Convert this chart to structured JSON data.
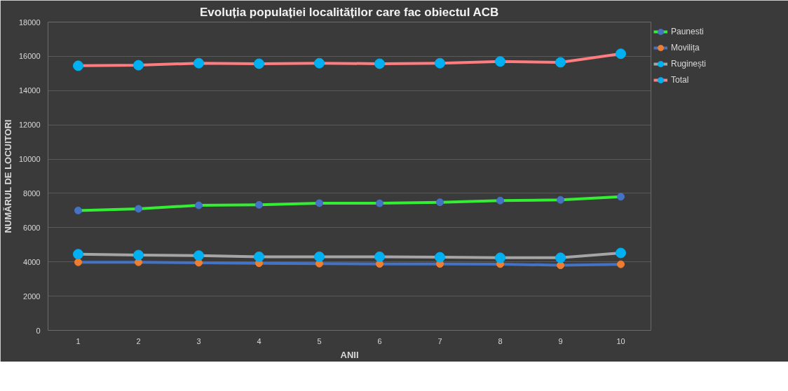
{
  "chart_data": {
    "type": "line",
    "title": "Evoluția populației localităților care fac obiectul ACB",
    "xlabel": "ANII",
    "ylabel": "NUMĂRUL DE LOCUITORI",
    "categories": [
      "1",
      "2",
      "3",
      "4",
      "5",
      "6",
      "7",
      "8",
      "9",
      "10"
    ],
    "series": [
      {
        "name": "Paunesti",
        "color": "#33ee33",
        "colors": [
          "#4472c4",
          "#4472c4",
          "#4472c4",
          "#4472c4",
          "#4472c4",
          "#4472c4",
          "#4472c4",
          "#4472c4",
          "#4472c4",
          "#4472c4"
        ],
        "values": [
          7000,
          7100,
          7300,
          7330,
          7430,
          7420,
          7480,
          7580,
          7620,
          7800
        ]
      },
      {
        "name": "Movilița",
        "color": "#4472c4",
        "colors": [
          "#ed7d31",
          "#ed7d31",
          "#ed7d31",
          "#ed7d31",
          "#ed7d31",
          "#ed7d31",
          "#ed7d31",
          "#ed7d31",
          "#ed7d31",
          "#ed7d31"
        ],
        "values": [
          3980,
          3980,
          3950,
          3920,
          3900,
          3880,
          3880,
          3870,
          3800,
          3860
        ]
      },
      {
        "name": "Ruginești",
        "color": "#a5a5a5",
        "colors": [
          "#00b0f0",
          "#00b0f0",
          "#00b0f0",
          "#00b0f0",
          "#00b0f0",
          "#00b0f0",
          "#00b0f0",
          "#00b0f0",
          "#00b0f0",
          "#00b0f0"
        ],
        "values": [
          4450,
          4400,
          4370,
          4300,
          4300,
          4300,
          4270,
          4240,
          4240,
          4520
        ]
      },
      {
        "name": "Total",
        "color": "#ff7c80",
        "colors": [
          "#00b0f0",
          "#00b0f0",
          "#00b0f0",
          "#00b0f0",
          "#00b0f0",
          "#00b0f0",
          "#00b0f0",
          "#00b0f0",
          "#00b0f0",
          "#00b0f0"
        ],
        "values": [
          15450,
          15480,
          15600,
          15570,
          15600,
          15570,
          15600,
          15700,
          15650,
          16150
        ]
      }
    ],
    "ylim": [
      0,
      18000
    ],
    "yticks": [
      0,
      2000,
      4000,
      6000,
      8000,
      10000,
      12000,
      14000,
      16000,
      18000
    ],
    "grid": "y",
    "legend": "right",
    "marker": "circle"
  }
}
